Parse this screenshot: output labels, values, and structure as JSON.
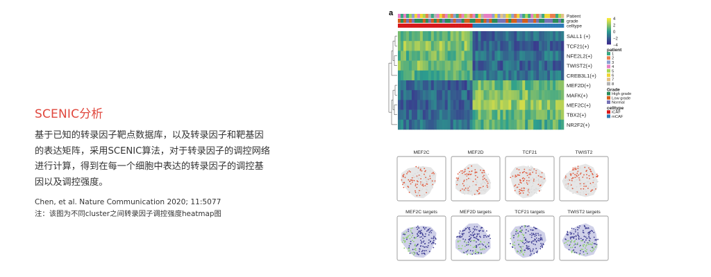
{
  "section": {
    "title": "SCENIC分析",
    "description": "基于已知的转录因子靶点数据库，以及转录因子和靶基因的表达矩阵，采用SCENIC算法，对于转录因子的调控网络进行计算，得到在每一个细胞中表达的转录因子的调控基因以及调控强度。",
    "citation": "Chen, et al. Nature Communication 2020; 11:5077",
    "note": "注：该图为不同cluster之间转录因子调控强度heatmap图"
  },
  "figure": {
    "panel_label": "a",
    "annotation_rows": [
      "Patient",
      "grade",
      "celltype"
    ],
    "regulons": [
      "SALL1 (+)",
      "TCF21(+)",
      "NFE2L2(+)",
      "TWIST2(+)",
      "CREB3L1(+)",
      "MEF2D(+)",
      "MAFK(+)",
      "MEF2C(+)",
      "TBX2(+)",
      "NR2F2(+)"
    ],
    "scale_ticks": [
      "4",
      "2",
      "0",
      "−2",
      "−4"
    ],
    "legend_patient_title": "patient",
    "legend_patient_items": [
      "1",
      "2",
      "3",
      "4",
      "5",
      "6",
      "7",
      "8"
    ],
    "legend_grade_title": "Grade",
    "legend_grade_items": [
      "High grade",
      "Low grade",
      "Normal"
    ],
    "legend_celltype_title": "celltype",
    "legend_celltype_items": [
      "iCAF",
      "mCAF"
    ],
    "tsne_titles_top": [
      "MEF2C",
      "MEF2D",
      "TCF21",
      "TWIST2"
    ],
    "tsne_titles_bottom": [
      "MEF2C targets",
      "MEF2D targets",
      "TCF21 targets",
      "TWIST2 targets"
    ],
    "colors": {
      "patient": [
        "#3aa882",
        "#e97e4c",
        "#8b9fd1",
        "#e77fc3",
        "#a6d854",
        "#f0d535",
        "#e3c187",
        "#b3b3b3"
      ],
      "grade": [
        "#2a8c5a",
        "#d55e1b",
        "#7772b5"
      ],
      "celltype": [
        "#d7191c",
        "#2c7bb6"
      ],
      "heat_low": "#3b2c8e",
      "heat_mid": "#2c9f8e",
      "heat_high": "#f7ea3a",
      "tsne_red": "#e0573a",
      "tsne_blue": "#3a3990",
      "tsne_green": "#8ccf6a"
    }
  },
  "chart_data": {
    "type": "heatmap",
    "rows": [
      "SALL1 (+)",
      "TCF21(+)",
      "NFE2L2(+)",
      "TWIST2(+)",
      "CREB3L1(+)",
      "MEF2D(+)",
      "MAFK(+)",
      "MEF2C(+)",
      "TBX2(+)",
      "NR2F2(+)"
    ],
    "column_groups": [
      "iCAF",
      "mCAF"
    ],
    "group_means": [
      [
        1.5,
        -2.0
      ],
      [
        1.8,
        -2.2
      ],
      [
        1.2,
        -1.6
      ],
      [
        1.6,
        -2.0
      ],
      [
        0.8,
        -1.2
      ],
      [
        -2.2,
        1.4
      ],
      [
        -2.0,
        1.6
      ],
      [
        -2.1,
        2.0
      ],
      [
        -1.8,
        1.2
      ],
      [
        -1.5,
        0.9
      ]
    ],
    "scale_range": [
      -4,
      4
    ]
  }
}
